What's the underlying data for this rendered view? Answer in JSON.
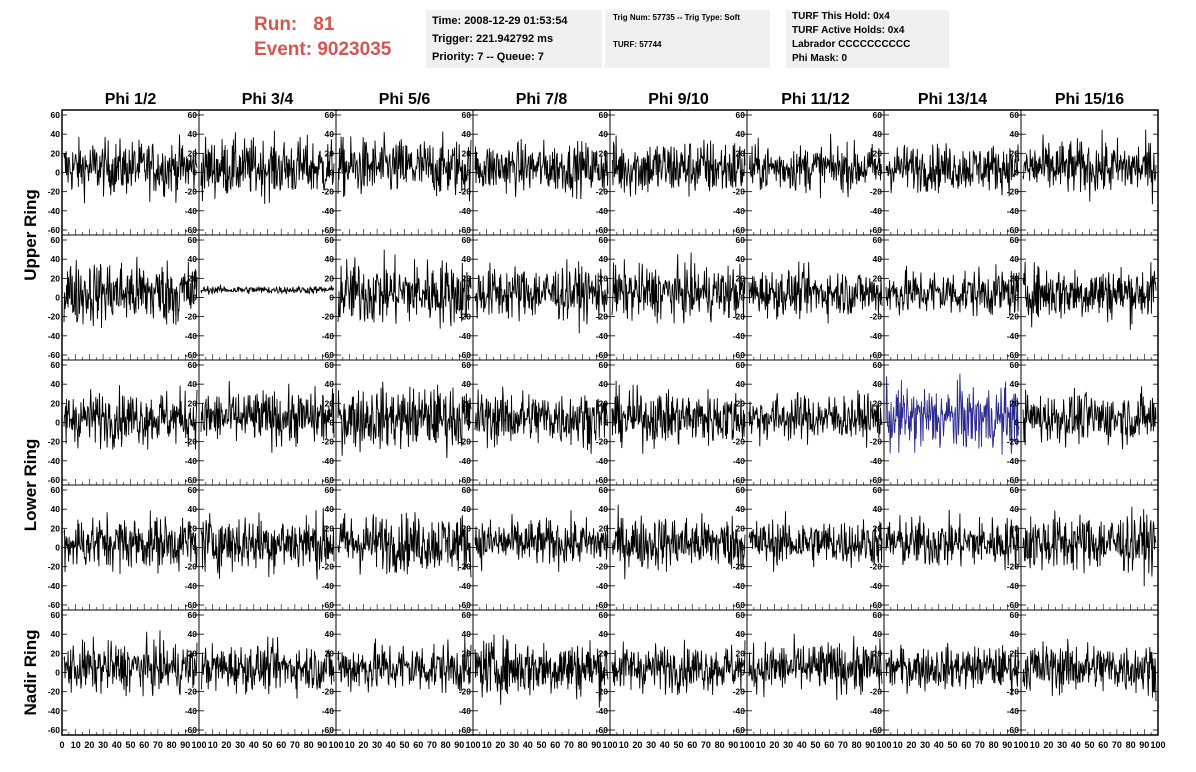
{
  "header": {
    "run_label": "Run:",
    "run_value": "81",
    "event_label": "Event:",
    "event_value": "9023035",
    "colors": {
      "run_text": "#d9534f",
      "box_bg": "#f0f0f0"
    }
  },
  "info_box_1": {
    "time": "Time: 2008-12-29 01:53:54",
    "trigger": "Trigger: 221.942792 ms",
    "priority": "Priority: 7 -- Queue: 7"
  },
  "info_box_2": {
    "trig": "Trig Num: 57735 -- Trig Type: Soft",
    "turf": "TURF: 57744"
  },
  "info_box_3": {
    "this_hold": "TURF This Hold: 0x4",
    "active_holds": "TURF Active Holds: 0x4",
    "labrador": "Labrador CCCCCCCCCC",
    "phi_mask": "Phi Mask: 0"
  },
  "chart_data": {
    "type": "line",
    "columns": [
      "Phi 1/2",
      "Phi 3/4",
      "Phi 5/6",
      "Phi 7/8",
      "Phi 9/10",
      "Phi 11/12",
      "Phi 13/14",
      "Phi 15/16"
    ],
    "row_groups": [
      {
        "label": "Upper Ring",
        "rows": 2
      },
      {
        "label": "Lower Ring",
        "rows": 2
      },
      {
        "label": "Nadir Ring",
        "rows": 1
      }
    ],
    "rows": 5,
    "xlim": [
      0,
      100
    ],
    "ylim": [
      -60,
      60
    ],
    "x_ticks": [
      "0",
      "10",
      "20",
      "30",
      "40",
      "50",
      "60",
      "70",
      "80",
      "90",
      "100"
    ],
    "y_ticks": [
      "60",
      "40",
      "20",
      "0",
      "-20",
      "-40",
      "-60"
    ],
    "samples_per_trace": 260,
    "colors": {
      "trace": "#000000",
      "highlight_trace": "#2b2b8f"
    },
    "highlight": {
      "row": 2,
      "col": 6
    },
    "series": [
      {
        "row": 0,
        "col": 0,
        "amplitude": 14,
        "offset": 5
      },
      {
        "row": 0,
        "col": 1,
        "amplitude": 15,
        "offset": 5
      },
      {
        "row": 0,
        "col": 2,
        "amplitude": 15,
        "offset": 5
      },
      {
        "row": 0,
        "col": 3,
        "amplitude": 13,
        "offset": 5
      },
      {
        "row": 0,
        "col": 4,
        "amplitude": 15,
        "offset": 5
      },
      {
        "row": 0,
        "col": 5,
        "amplitude": 12,
        "offset": 5
      },
      {
        "row": 0,
        "col": 6,
        "amplitude": 12,
        "offset": 5
      },
      {
        "row": 0,
        "col": 7,
        "amplitude": 14,
        "offset": 5
      },
      {
        "row": 1,
        "col": 0,
        "amplitude": 17,
        "offset": 5
      },
      {
        "row": 1,
        "col": 1,
        "amplitude": 2,
        "offset": 8
      },
      {
        "row": 1,
        "col": 2,
        "amplitude": 17,
        "offset": 5
      },
      {
        "row": 1,
        "col": 3,
        "amplitude": 14,
        "offset": 5
      },
      {
        "row": 1,
        "col": 4,
        "amplitude": 14,
        "offset": 5
      },
      {
        "row": 1,
        "col": 5,
        "amplitude": 12,
        "offset": 5
      },
      {
        "row": 1,
        "col": 6,
        "amplitude": 12,
        "offset": 5
      },
      {
        "row": 1,
        "col": 7,
        "amplitude": 14,
        "offset": 5
      },
      {
        "row": 2,
        "col": 0,
        "amplitude": 14,
        "offset": 5
      },
      {
        "row": 2,
        "col": 1,
        "amplitude": 14,
        "offset": 5
      },
      {
        "row": 2,
        "col": 2,
        "amplitude": 16,
        "offset": 5
      },
      {
        "row": 2,
        "col": 3,
        "amplitude": 14,
        "offset": 5
      },
      {
        "row": 2,
        "col": 4,
        "amplitude": 14,
        "offset": 5
      },
      {
        "row": 2,
        "col": 5,
        "amplitude": 12,
        "offset": 5
      },
      {
        "row": 2,
        "col": 6,
        "amplitude": 17,
        "offset": 5
      },
      {
        "row": 2,
        "col": 7,
        "amplitude": 13,
        "offset": 5
      },
      {
        "row": 3,
        "col": 0,
        "amplitude": 14,
        "offset": 5
      },
      {
        "row": 3,
        "col": 1,
        "amplitude": 15,
        "offset": 5
      },
      {
        "row": 3,
        "col": 2,
        "amplitude": 15,
        "offset": 5
      },
      {
        "row": 3,
        "col": 3,
        "amplitude": 12,
        "offset": 5
      },
      {
        "row": 3,
        "col": 4,
        "amplitude": 14,
        "offset": 5
      },
      {
        "row": 3,
        "col": 5,
        "amplitude": 12,
        "offset": 5
      },
      {
        "row": 3,
        "col": 6,
        "amplitude": 13,
        "offset": 5
      },
      {
        "row": 3,
        "col": 7,
        "amplitude": 15,
        "offset": 5
      },
      {
        "row": 4,
        "col": 0,
        "amplitude": 13,
        "offset": 5
      },
      {
        "row": 4,
        "col": 1,
        "amplitude": 12,
        "offset": 5
      },
      {
        "row": 4,
        "col": 2,
        "amplitude": 13,
        "offset": 5
      },
      {
        "row": 4,
        "col": 3,
        "amplitude": 15,
        "offset": 5
      },
      {
        "row": 4,
        "col": 4,
        "amplitude": 12,
        "offset": 5
      },
      {
        "row": 4,
        "col": 5,
        "amplitude": 13,
        "offset": 5
      },
      {
        "row": 4,
        "col": 6,
        "amplitude": 11,
        "offset": 5
      },
      {
        "row": 4,
        "col": 7,
        "amplitude": 13,
        "offset": 5
      }
    ]
  }
}
